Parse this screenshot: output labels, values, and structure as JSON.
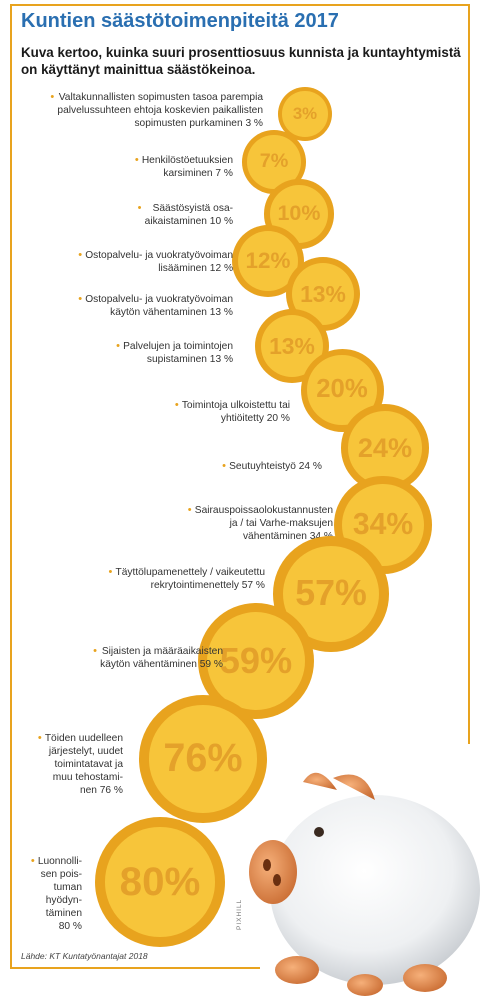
{
  "title": "Kuntien säästötoimenpiteitä 2017",
  "subtitle": "Kuva kertoo, kuinka suuri prosenttiosuus kunnista ja kuntayhtymistä on käyttänyt mainittua säästökeinoa.",
  "source": "Lähde: KT Kuntatyönantajat 2018",
  "credit": "PIXHILL",
  "colors": {
    "title": "#2a6fb1",
    "coin_outer": "#e8a31e",
    "coin_inner": "#f7c53a",
    "coin_text": "#e4a12a",
    "border": "#e8a31e"
  },
  "chart_data": {
    "type": "bubble",
    "title": "Kuntien säästötoimenpiteitä 2017",
    "unit": "%",
    "items": [
      {
        "label_lines": [
          "Valtakunnallisten sopimusten tasoa parempia",
          "palvelussuhteen ehtoja koskevien paikallisten",
          "sopimusten purkaminen 3 %"
        ],
        "value": 3,
        "value_label": "3%"
      },
      {
        "label_lines": [
          "Henkilöstöetuuksien",
          "karsiminen 7 %"
        ],
        "value": 7,
        "value_label": "7%"
      },
      {
        "label_lines": [
          "Säästösyistä osa-",
          "aikaistaminen 10 %"
        ],
        "value": 10,
        "value_label": "10%"
      },
      {
        "label_lines": [
          "Ostopalvelu- ja vuokratyövoiman",
          "lisääminen 12 %"
        ],
        "value": 12,
        "value_label": "12%"
      },
      {
        "label_lines": [
          "Ostopalvelu- ja vuokratyövoiman",
          "käytön vähentaminen 13 %"
        ],
        "value": 13,
        "value_label": "13%"
      },
      {
        "label_lines": [
          "Palvelujen ja toimintojen",
          "supistaminen 13 %"
        ],
        "value": 13,
        "value_label": "13%"
      },
      {
        "label_lines": [
          "Toimintoja ulkoistettu tai",
          "yhtiöitetty 20 %"
        ],
        "value": 20,
        "value_label": "20%"
      },
      {
        "label_lines": [
          "Seutuyhteistyö 24 %"
        ],
        "value": 24,
        "value_label": "24%"
      },
      {
        "label_lines": [
          "Sairauspoissaolokustannusten",
          "ja / tai Varhe-maksujen",
          "vähentäminen 34 %"
        ],
        "value": 34,
        "value_label": "34%"
      },
      {
        "label_lines": [
          "Täyttölupamenettely / vaikeutettu",
          "rekrytointimenettely 57 %"
        ],
        "value": 57,
        "value_label": "57%"
      },
      {
        "label_lines": [
          "Sijaisten ja määräaikaisten",
          "käytön vähentäminen 59 %"
        ],
        "value": 59,
        "value_label": "59%"
      },
      {
        "label_lines": [
          "Töiden uudelleen",
          "järjestelyt, uudet",
          "toimintatavat ja",
          "muu tehostami-",
          "nen 76 %"
        ],
        "value": 76,
        "value_label": "76%"
      },
      {
        "label_lines": [
          "Luonnolli-",
          "sen pois-",
          "tuman",
          "hyödyn-",
          "täminen",
          "80 %"
        ],
        "value": 80,
        "value_label": "80%"
      }
    ]
  }
}
